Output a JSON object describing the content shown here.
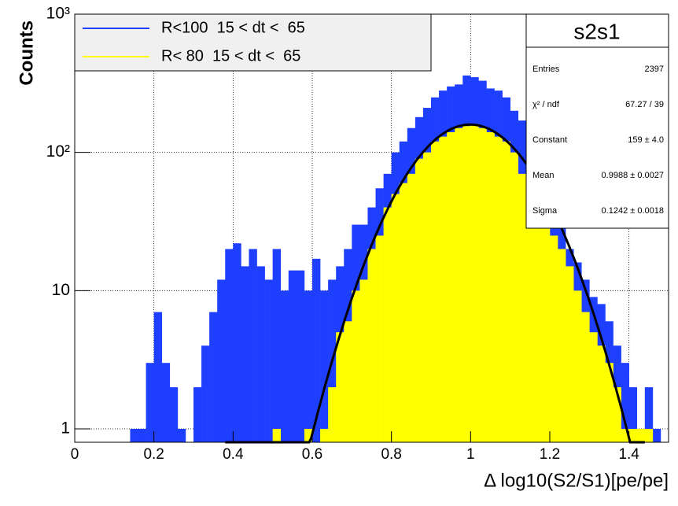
{
  "chart_data": {
    "type": "histogram",
    "xlabel": "Δ log10(S2/S1)[pe/pe]",
    "ylabel": "Counts",
    "log_y": true,
    "grid": true,
    "xlim": [
      0,
      1.5
    ],
    "ylim": [
      0.8,
      1000
    ],
    "xticks": [
      0,
      0.2,
      0.4,
      0.6,
      0.8,
      1,
      1.2,
      1.4
    ],
    "yticks": [
      1,
      10,
      {
        "value": 100,
        "label": "10²"
      },
      {
        "value": 1000,
        "label": "10³"
      }
    ],
    "bins": [
      0,
      0.02,
      0.04,
      0.06,
      0.08,
      0.1,
      0.12,
      0.14,
      0.16,
      0.18,
      0.2,
      0.22,
      0.24,
      0.26,
      0.28,
      0.3,
      0.32,
      0.34,
      0.36,
      0.38,
      0.4,
      0.42,
      0.44,
      0.46,
      0.48,
      0.5,
      0.52,
      0.54,
      0.56,
      0.58,
      0.6,
      0.62,
      0.64,
      0.66,
      0.68,
      0.7,
      0.72,
      0.74,
      0.76,
      0.78,
      0.8,
      0.82,
      0.84,
      0.86,
      0.88,
      0.9,
      0.92,
      0.94,
      0.96,
      0.98,
      1,
      1.02,
      1.04,
      1.06,
      1.08,
      1.1,
      1.12,
      1.14,
      1.16,
      1.18,
      1.2,
      1.22,
      1.24,
      1.26,
      1.28,
      1.3,
      1.32,
      1.34,
      1.36,
      1.38,
      1.4,
      1.42,
      1.44,
      1.46,
      1.48,
      1.5
    ],
    "series": [
      {
        "name": "R<100  15 < dt <  65",
        "color": "#1f3fff",
        "values": [
          0,
          0,
          0,
          0,
          0,
          0,
          0,
          1,
          1,
          3,
          7,
          3,
          2,
          1,
          0,
          2,
          4,
          7,
          12,
          20,
          22,
          15,
          20,
          15,
          12,
          20,
          10,
          14,
          14,
          10,
          17,
          10,
          12,
          15,
          20,
          30,
          30,
          40,
          55,
          70,
          100,
          120,
          150,
          180,
          210,
          250,
          280,
          300,
          310,
          360,
          350,
          330,
          290,
          280,
          250,
          200,
          170,
          120,
          80,
          60,
          45,
          30,
          20,
          16,
          12,
          9,
          8,
          6,
          4,
          3,
          2,
          1,
          2,
          1,
          0
        ]
      },
      {
        "name": "R< 80  15 < dt <  65",
        "color": "#ffff00",
        "values": [
          0,
          0,
          0,
          0,
          0,
          0,
          0,
          0,
          0,
          0,
          0,
          0,
          0,
          0,
          0,
          0,
          0,
          0,
          0,
          0,
          0,
          0,
          0,
          0,
          0,
          1,
          0,
          0,
          0,
          1,
          0,
          1,
          2,
          5,
          6,
          10,
          12,
          20,
          25,
          40,
          50,
          60,
          70,
          90,
          100,
          120,
          130,
          140,
          150,
          155,
          160,
          150,
          140,
          130,
          120,
          100,
          70,
          60,
          40,
          30,
          25,
          20,
          15,
          10,
          7,
          5,
          4,
          3,
          2,
          1,
          1,
          1,
          1,
          0,
          0
        ]
      }
    ],
    "fit": {
      "constant": 159,
      "mean": 0.9988,
      "sigma": 0.1242,
      "range": [
        0.38,
        1.44
      ],
      "color": "#000000"
    },
    "stats": {
      "title": "s2s1",
      "rows": [
        [
          "Entries",
          2397
        ],
        [
          "χ² / ndf",
          "67.27 / 39"
        ],
        [
          "Constant",
          "159 ± 4.0"
        ],
        [
          "Mean",
          "0.9988 ± 0.0027"
        ],
        [
          "Sigma",
          "0.1242 ± 0.0018"
        ]
      ]
    }
  }
}
